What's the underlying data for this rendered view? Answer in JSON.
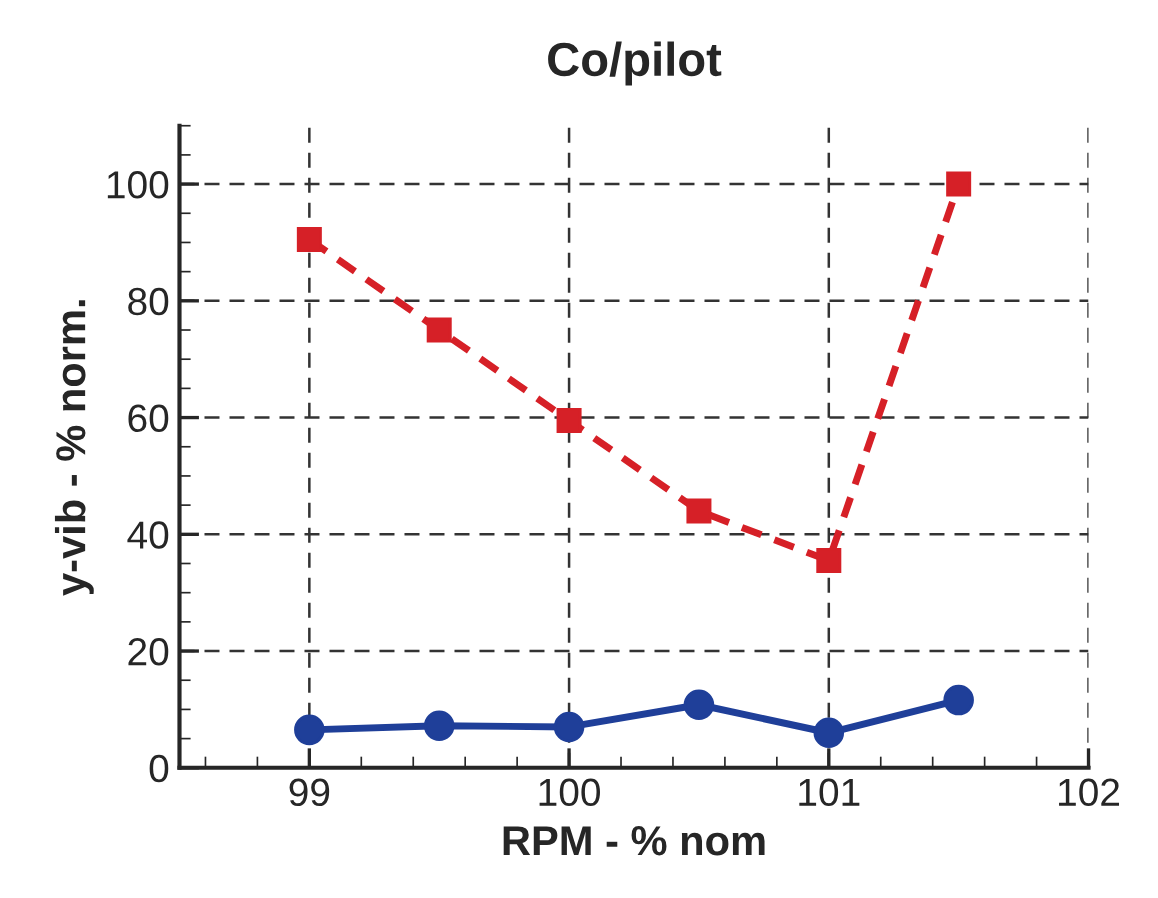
{
  "chart_data": {
    "type": "line",
    "title": "Co/pilot",
    "xlabel": "RPM - % nom",
    "ylabel": "y-vib - % norm.",
    "x": [
      99,
      99.5,
      100,
      100.5,
      101,
      101.5
    ],
    "series": [
      {
        "color": "#d62027",
        "values": [
          90.5,
          75,
          59.5,
          44,
          35.5,
          100
        ],
        "marker": "square",
        "line_style": "dashed"
      },
      {
        "color": "#1f3f99",
        "values": [
          6.5,
          7.2,
          7,
          10.8,
          6,
          11.6
        ],
        "marker": "circle",
        "line_style": "solid"
      }
    ],
    "xlim": [
      98.5,
      102
    ],
    "xticks": [
      99,
      100,
      101,
      102
    ],
    "ylim": [
      0,
      110
    ],
    "yticks": [
      0,
      20,
      40,
      60,
      80,
      100
    ],
    "grid": true
  }
}
